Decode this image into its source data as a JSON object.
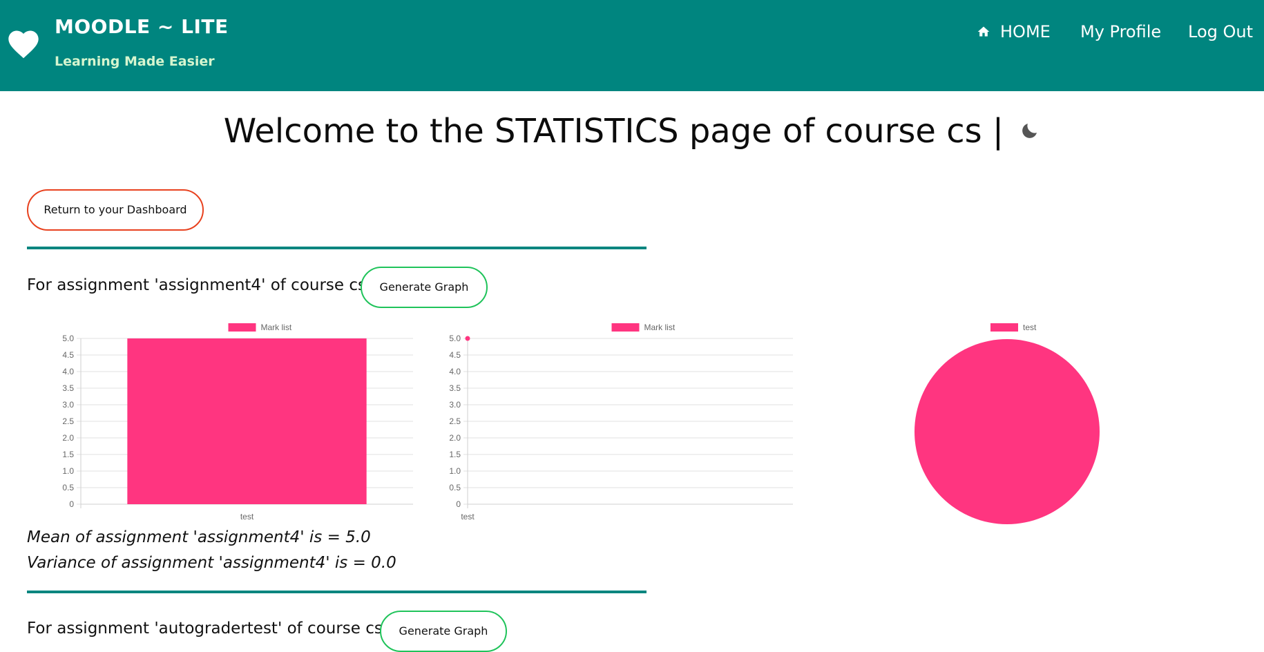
{
  "header": {
    "brand_title": "MOODLE ~ LITE",
    "brand_subtitle": "Learning Made Easier",
    "nav": {
      "home": "HOME",
      "profile": "My Profile",
      "logout": "Log Out"
    },
    "icons": [
      "heart-icon",
      "home-icon"
    ],
    "colors": {
      "header_bg": "#00857f",
      "subtitle": "#d6f5cf"
    }
  },
  "page": {
    "title": "Welcome to the STATISTICS page of course cs |",
    "theme_toggle_icon": "moon-icon",
    "return_button": "Return to your Dashboard",
    "colors": {
      "divider": "#00857f",
      "return_border": "#e8411e",
      "generate_border": "#1fc35a"
    }
  },
  "assignments": [
    {
      "heading": "For assignment 'assignment4' of course cs",
      "generate_button": "Generate Graph",
      "mean_text": "Mean of assignment 'assignment4' is = 5.0",
      "variance_text": "Variance of assignment 'assignment4' is = 0.0"
    },
    {
      "heading": "For assignment 'autogradertest' of course cs",
      "generate_button": "Generate Graph"
    }
  ],
  "chart_data": [
    {
      "type": "bar",
      "categories": [
        "test"
      ],
      "series": [
        {
          "name": "Mark list",
          "values": [
            5.0
          ],
          "color": "#ff3580"
        }
      ],
      "y_ticks": [
        "0",
        "0.5",
        "1.0",
        "1.5",
        "2.0",
        "2.5",
        "3.0",
        "3.5",
        "4.0",
        "4.5",
        "5.0"
      ],
      "ylim": [
        0,
        5
      ],
      "grid": true,
      "legend": "top"
    },
    {
      "type": "line",
      "categories": [
        "test"
      ],
      "series": [
        {
          "name": "Mark list",
          "values": [
            5.0
          ],
          "color": "#ff3580"
        }
      ],
      "y_ticks": [
        "0",
        "0.5",
        "1.0",
        "1.5",
        "2.0",
        "2.5",
        "3.0",
        "3.5",
        "4.0",
        "4.5",
        "5.0"
      ],
      "ylim": [
        0,
        5
      ],
      "grid": true,
      "legend": "top"
    },
    {
      "type": "pie",
      "labels": [
        "test"
      ],
      "series": [
        {
          "name": "test",
          "values": [
            5.0
          ],
          "color": "#ff3580"
        }
      ],
      "legend": "top"
    }
  ]
}
